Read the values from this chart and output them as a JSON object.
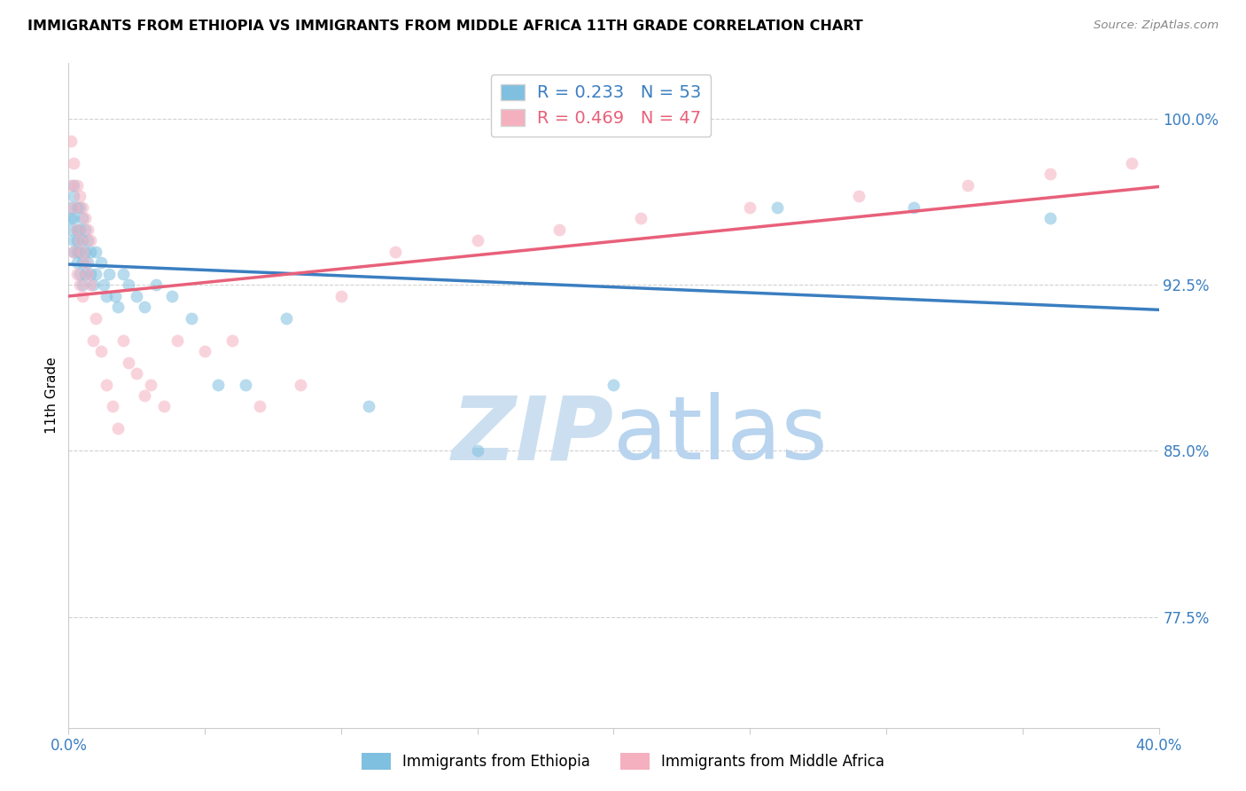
{
  "title": "IMMIGRANTS FROM ETHIOPIA VS IMMIGRANTS FROM MIDDLE AFRICA 11TH GRADE CORRELATION CHART",
  "source": "Source: ZipAtlas.com",
  "ylabel": "11th Grade",
  "yticks": [
    0.775,
    0.85,
    0.925,
    1.0
  ],
  "ytick_labels": [
    "77.5%",
    "85.0%",
    "92.5%",
    "100.0%"
  ],
  "xlim": [
    0.0,
    0.4
  ],
  "ylim": [
    0.725,
    1.025
  ],
  "series1_label": "Immigrants from Ethiopia",
  "series1_R": 0.233,
  "series1_N": 53,
  "series1_color": "#7fbfdf",
  "series1_line_color": "#3a7ec1",
  "series2_label": "Immigrants from Middle Africa",
  "series2_R": 0.469,
  "series2_N": 47,
  "series2_color": "#f5b0c0",
  "series2_line_color": "#e8607a",
  "watermark_zip": "ZIP",
  "watermark_atlas": "atlas",
  "watermark_color_zip": "#ccdff0",
  "watermark_color_atlas": "#b8d4ee",
  "background_color": "#ffffff",
  "scatter_alpha": 0.55,
  "scatter_size": 100,
  "series1_x": [
    0.001,
    0.001,
    0.001,
    0.002,
    0.002,
    0.002,
    0.002,
    0.002,
    0.003,
    0.003,
    0.003,
    0.003,
    0.003,
    0.004,
    0.004,
    0.004,
    0.004,
    0.005,
    0.005,
    0.005,
    0.005,
    0.006,
    0.006,
    0.006,
    0.007,
    0.007,
    0.008,
    0.008,
    0.009,
    0.01,
    0.01,
    0.012,
    0.013,
    0.014,
    0.015,
    0.017,
    0.018,
    0.02,
    0.022,
    0.025,
    0.028,
    0.032,
    0.038,
    0.045,
    0.055,
    0.065,
    0.08,
    0.11,
    0.15,
    0.2,
    0.26,
    0.31,
    0.36
  ],
  "series1_y": [
    0.96,
    0.955,
    0.95,
    0.97,
    0.965,
    0.955,
    0.945,
    0.94,
    0.96,
    0.95,
    0.945,
    0.94,
    0.935,
    0.96,
    0.95,
    0.94,
    0.93,
    0.955,
    0.945,
    0.935,
    0.925,
    0.95,
    0.94,
    0.93,
    0.945,
    0.935,
    0.94,
    0.93,
    0.925,
    0.94,
    0.93,
    0.935,
    0.925,
    0.92,
    0.93,
    0.92,
    0.915,
    0.93,
    0.925,
    0.92,
    0.915,
    0.925,
    0.92,
    0.91,
    0.88,
    0.88,
    0.91,
    0.87,
    0.85,
    0.88,
    0.96,
    0.96,
    0.955
  ],
  "series2_x": [
    0.001,
    0.001,
    0.002,
    0.002,
    0.002,
    0.003,
    0.003,
    0.003,
    0.004,
    0.004,
    0.004,
    0.005,
    0.005,
    0.005,
    0.006,
    0.006,
    0.007,
    0.007,
    0.008,
    0.008,
    0.009,
    0.01,
    0.012,
    0.014,
    0.016,
    0.018,
    0.02,
    0.022,
    0.025,
    0.028,
    0.03,
    0.035,
    0.04,
    0.05,
    0.06,
    0.07,
    0.085,
    0.1,
    0.12,
    0.15,
    0.18,
    0.21,
    0.25,
    0.29,
    0.33,
    0.36,
    0.39
  ],
  "series2_y": [
    0.99,
    0.97,
    0.98,
    0.96,
    0.94,
    0.97,
    0.95,
    0.93,
    0.965,
    0.945,
    0.925,
    0.96,
    0.94,
    0.92,
    0.955,
    0.935,
    0.95,
    0.93,
    0.945,
    0.925,
    0.9,
    0.91,
    0.895,
    0.88,
    0.87,
    0.86,
    0.9,
    0.89,
    0.885,
    0.875,
    0.88,
    0.87,
    0.9,
    0.895,
    0.9,
    0.87,
    0.88,
    0.92,
    0.94,
    0.945,
    0.95,
    0.955,
    0.96,
    0.965,
    0.97,
    0.975,
    0.98
  ],
  "grid_color": "#cccccc",
  "tick_color": "#3a7ec1",
  "legend_bg": "#ffffff",
  "legend_edge": "#cccccc"
}
